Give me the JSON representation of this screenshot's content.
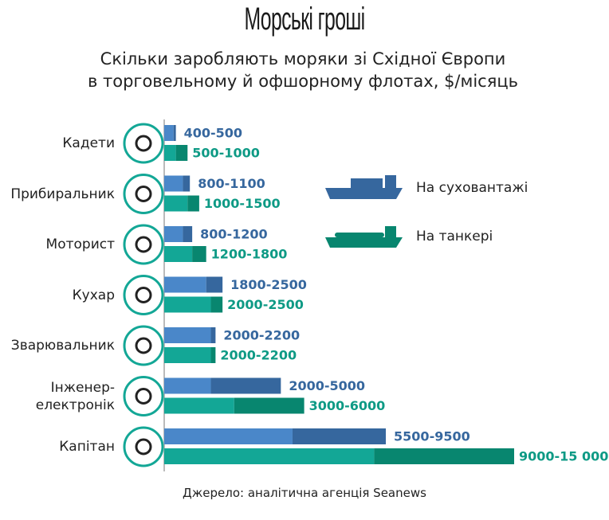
{
  "chart_data": {
    "type": "range-bar",
    "title": "Морські гроші",
    "subtitle": "Скільки заробляють моряки зі Східної Європи\nв торговельному й офшорному флотах, $/місяць",
    "source": "Джерело: аналітична агенція Seanews",
    "categories": [
      "Кадети",
      "Прибиральник",
      "Моторист",
      "Кухар",
      "Зварювальник",
      "Інженер-\nелектронік",
      "Капітан"
    ],
    "xlim": [
      0,
      15000
    ],
    "series": [
      {
        "name": "На суховантажі",
        "color": "#4a87c9",
        "dark_color": "#36679e",
        "low": [
          400,
          800,
          800,
          1800,
          2000,
          2000,
          5500
        ],
        "high": [
          500,
          1100,
          1200,
          2500,
          2200,
          5000,
          9500
        ],
        "value_labels": [
          "400-500",
          "800-1100",
          "800-1200",
          "1800-2500",
          "2000-2200",
          "2000-5000",
          "5500-9500"
        ]
      },
      {
        "name": "На танкері",
        "color": "#13a796",
        "dark_color": "#08866f",
        "low": [
          500,
          1000,
          1200,
          2000,
          2000,
          3000,
          9000
        ],
        "high": [
          1000,
          1500,
          1800,
          2500,
          2200,
          6000,
          15000
        ],
        "value_labels": [
          "500-1000",
          "1000-1500",
          "1200-1800",
          "2000-2500",
          "2000-2200",
          "3000-6000",
          "9000-15 000"
        ]
      }
    ]
  }
}
